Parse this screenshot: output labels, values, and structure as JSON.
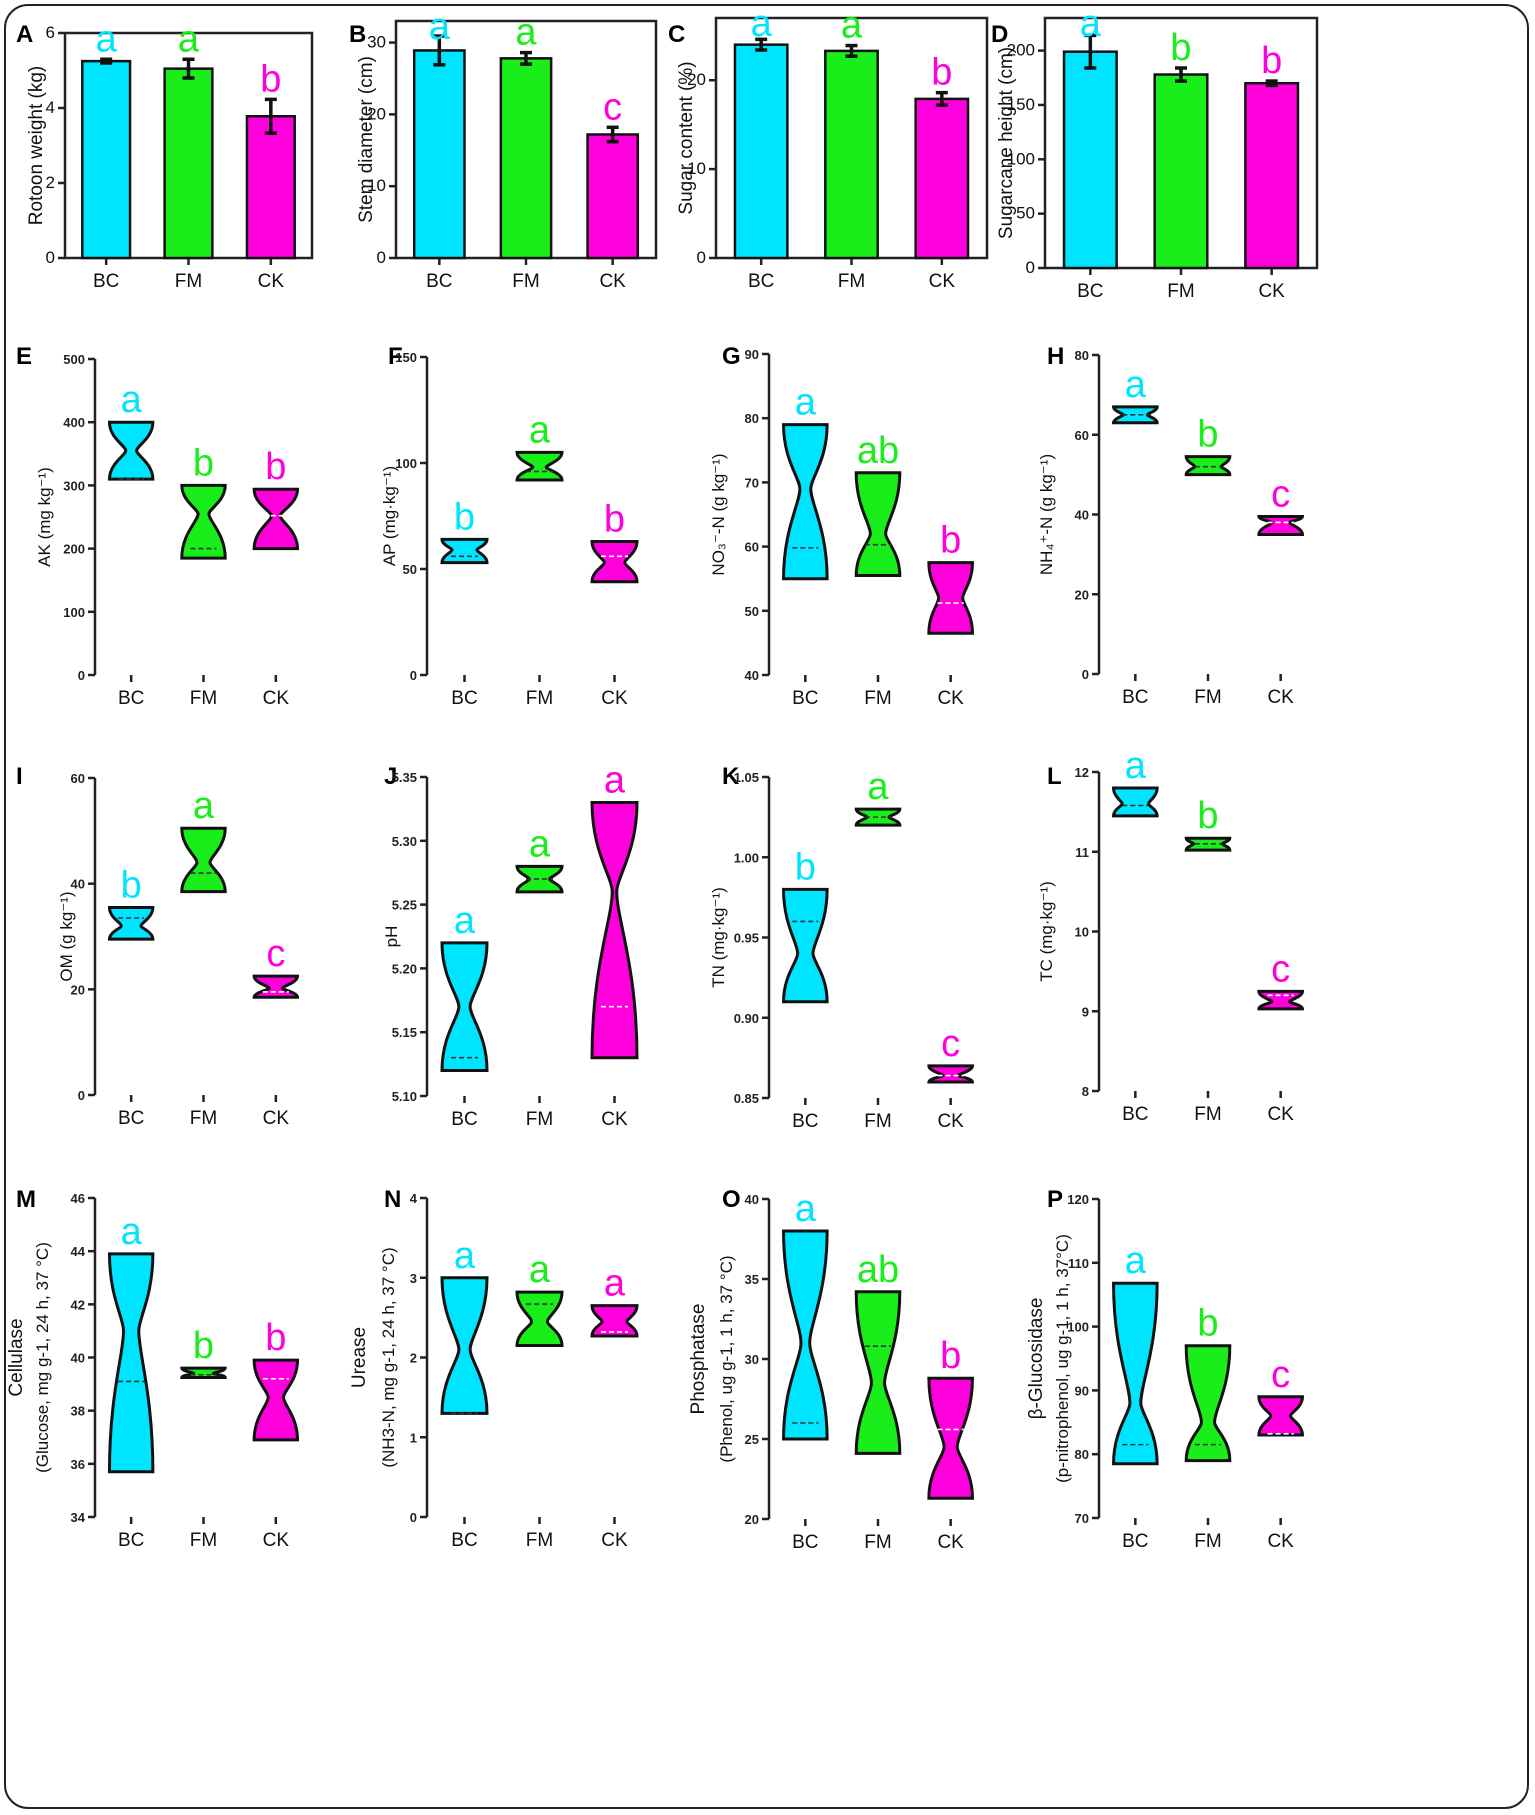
{
  "colors": {
    "BC": "#00e5ff",
    "FM": "#1aee1a",
    "CK": "#ff00dd"
  },
  "categories": [
    "BC",
    "FM",
    "CK"
  ],
  "chart_data": [
    {
      "panel": "A",
      "type": "bar",
      "ylabel": "Rotoon weight (kg)",
      "ylim": [
        0,
        6
      ],
      "ticks": [
        0,
        2,
        4,
        6
      ],
      "categories": [
        "BC",
        "FM",
        "CK"
      ],
      "values": [
        5.25,
        5.05,
        3.78
      ],
      "errors": [
        0.05,
        0.25,
        0.45
      ],
      "letters": [
        "a",
        "a",
        "b"
      ]
    },
    {
      "panel": "B",
      "type": "bar",
      "ylabel": "Stem diameter (cm)",
      "ylim": [
        0,
        33
      ],
      "ticks": [
        0,
        10,
        20,
        30
      ],
      "categories": [
        "BC",
        "FM",
        "CK"
      ],
      "values": [
        28.9,
        27.8,
        17.2
      ],
      "errors": [
        2.0,
        0.8,
        1.0
      ],
      "letters": [
        "a",
        "a",
        "c"
      ]
    },
    {
      "panel": "C",
      "type": "bar",
      "ylabel": "Sugar content (%)",
      "ylim": [
        0,
        27
      ],
      "ticks": [
        0,
        10,
        20
      ],
      "categories": [
        "BC",
        "FM",
        "CK"
      ],
      "values": [
        24.0,
        23.3,
        17.9
      ],
      "errors": [
        0.6,
        0.6,
        0.7
      ],
      "letters": [
        "a",
        "a",
        "b"
      ]
    },
    {
      "panel": "D",
      "type": "bar",
      "ylabel": "Sugarcane height (cm)",
      "ylim": [
        0,
        230
      ],
      "ticks": [
        0,
        50,
        100,
        150,
        200
      ],
      "categories": [
        "BC",
        "FM",
        "CK"
      ],
      "values": [
        199,
        178,
        170
      ],
      "errors": [
        15,
        6,
        2
      ],
      "letters": [
        "a",
        "b",
        "b"
      ]
    },
    {
      "panel": "E",
      "type": "violin",
      "ylabel": "AK    (mg kg⁻¹)",
      "ylim": [
        0,
        500
      ],
      "ticks": [
        0,
        100,
        200,
        300,
        400,
        500
      ],
      "categories": [
        "BC",
        "FM",
        "CK"
      ],
      "letters": [
        "a",
        "b",
        "b"
      ],
      "violins": [
        {
          "min": 310,
          "max": 400,
          "median": 310,
          "neck": 355,
          "neck_width": 0.25
        },
        {
          "min": 185,
          "max": 300,
          "median": 200,
          "neck": 255,
          "neck_width": 0.25
        },
        {
          "min": 200,
          "max": 294,
          "median": 252,
          "neck": 252,
          "neck_width": 0.2
        }
      ]
    },
    {
      "panel": "F",
      "type": "violin",
      "ylabel": "AP  (mg·kg⁻¹)",
      "ylim": [
        0,
        150
      ],
      "ticks": [
        0,
        50,
        100,
        150
      ],
      "categories": [
        "BC",
        "FM",
        "CK"
      ],
      "letters": [
        "b",
        "a",
        "b"
      ],
      "violins": [
        {
          "min": 53,
          "max": 64,
          "median": 56,
          "neck": 59,
          "neck_width": 0.55
        },
        {
          "min": 92,
          "max": 105,
          "median": 96,
          "neck": 98,
          "neck_width": 0.3
        },
        {
          "min": 44,
          "max": 63,
          "median": 56,
          "neck": 53,
          "neck_width": 0.45
        }
      ]
    },
    {
      "panel": "G",
      "type": "violin",
      "ylabel": "NO₃⁻-N (g kg⁻¹)",
      "ylim": [
        40,
        90
      ],
      "ticks": [
        40,
        50,
        60,
        70,
        80,
        90
      ],
      "categories": [
        "BC",
        "FM",
        "CK"
      ],
      "letters": [
        "a",
        "ab",
        "b"
      ],
      "violins": [
        {
          "min": 55,
          "max": 79,
          "median": 59.8,
          "neck": 69,
          "neck_width": 0.25
        },
        {
          "min": 55.5,
          "max": 71.5,
          "median": 60.3,
          "neck": 62,
          "neck_width": 0.35
        },
        {
          "min": 46.5,
          "max": 57.5,
          "median": 51.2,
          "neck": 52,
          "neck_width": 0.55
        }
      ]
    },
    {
      "panel": "H",
      "type": "violin",
      "ylabel": "NH₄⁺-N (g kg⁻¹)",
      "ylim": [
        0,
        80
      ],
      "ticks": [
        0,
        20,
        40,
        60,
        80
      ],
      "categories": [
        "BC",
        "FM",
        "CK"
      ],
      "letters": [
        "a",
        "b",
        "c"
      ],
      "violins": [
        {
          "min": 63,
          "max": 67,
          "median": 65,
          "neck": 65,
          "neck_width": 0.55
        },
        {
          "min": 50,
          "max": 54.5,
          "median": 52,
          "neck": 52,
          "neck_width": 0.6
        },
        {
          "min": 35,
          "max": 39.5,
          "median": 38,
          "neck": 38,
          "neck_width": 0.4
        }
      ]
    },
    {
      "panel": "I",
      "type": "violin",
      "ylabel": "OM (g kg⁻¹)",
      "ylim": [
        0,
        60
      ],
      "ticks": [
        0,
        20,
        40,
        60
      ],
      "categories": [
        "BC",
        "FM",
        "CK"
      ],
      "letters": [
        "b",
        "a",
        "c"
      ],
      "violins": [
        {
          "min": 29.5,
          "max": 35.5,
          "median": 33.5,
          "neck": 32,
          "neck_width": 0.45
        },
        {
          "min": 38.5,
          "max": 50.5,
          "median": 42,
          "neck": 44,
          "neck_width": 0.3
        },
        {
          "min": 18.5,
          "max": 22.5,
          "median": 19.5,
          "neck": 20.2,
          "neck_width": 0.3
        }
      ]
    },
    {
      "panel": "J",
      "type": "violin",
      "ylabel": "pH",
      "ylim": [
        5.1,
        5.35
      ],
      "ticks": [
        5.1,
        5.15,
        5.2,
        5.25,
        5.3,
        5.35
      ],
      "categories": [
        "BC",
        "FM",
        "CK"
      ],
      "letters": [
        "a",
        "a",
        "a"
      ],
      "violins": [
        {
          "min": 5.12,
          "max": 5.22,
          "median": 5.13,
          "neck": 5.17,
          "neck_width": 0.25
        },
        {
          "min": 5.26,
          "max": 5.28,
          "median": 5.27,
          "neck": 5.27,
          "neck_width": 0.45
        },
        {
          "min": 5.13,
          "max": 5.33,
          "median": 5.17,
          "neck": 5.26,
          "neck_width": 0.1
        }
      ]
    },
    {
      "panel": "K",
      "type": "violin",
      "ylabel": "TN (mg·kg⁻¹)",
      "ylim": [
        0.85,
        1.05
      ],
      "ticks": [
        0.85,
        0.9,
        0.95,
        1.0,
        1.05
      ],
      "categories": [
        "BC",
        "FM",
        "CK"
      ],
      "letters": [
        "b",
        "a",
        "c"
      ],
      "violins": [
        {
          "min": 0.91,
          "max": 0.98,
          "median": 0.96,
          "neck": 0.94,
          "neck_width": 0.35
        },
        {
          "min": 1.02,
          "max": 1.03,
          "median": 1.025,
          "neck": 1.025,
          "neck_width": 0.5
        },
        {
          "min": 0.86,
          "max": 0.87,
          "median": 0.864,
          "neck": 0.864,
          "neck_width": 0.35
        }
      ]
    },
    {
      "panel": "L",
      "type": "violin",
      "ylabel": "TC  (mg·kg⁻¹)",
      "ylim": [
        8,
        12
      ],
      "ticks": [
        8,
        9,
        10,
        11,
        12
      ],
      "categories": [
        "BC",
        "FM",
        "CK"
      ],
      "letters": [
        "a",
        "b",
        "c"
      ],
      "violins": [
        {
          "min": 11.45,
          "max": 11.8,
          "median": 11.58,
          "neck": 11.6,
          "neck_width": 0.6
        },
        {
          "min": 11.02,
          "max": 11.17,
          "median": 11.1,
          "neck": 11.1,
          "neck_width": 0.65
        },
        {
          "min": 9.03,
          "max": 9.25,
          "median": 9.2,
          "neck": 9.12,
          "neck_width": 0.4
        }
      ]
    },
    {
      "panel": "M",
      "type": "violin",
      "ylabel": "Cellulase",
      "ylabel2": "(Glucose, mg g-1, 24 h, 37 °C)",
      "ylim": [
        34,
        46
      ],
      "ticks": [
        34,
        36,
        38,
        40,
        42,
        44,
        46
      ],
      "categories": [
        "BC",
        "FM",
        "CK"
      ],
      "letters": [
        "a",
        "b",
        "b"
      ],
      "violins": [
        {
          "min": 35.7,
          "max": 43.9,
          "median": 39.1,
          "neck": 41,
          "neck_width": 0.35
        },
        {
          "min": 39.25,
          "max": 39.6,
          "median": 39.35,
          "neck": 39.4,
          "neck_width": 0.45
        },
        {
          "min": 36.9,
          "max": 39.9,
          "median": 39.2,
          "neck": 38.5,
          "neck_width": 0.35
        }
      ]
    },
    {
      "panel": "N",
      "type": "violin",
      "ylabel": "Urease",
      "ylabel2": "(NH3-N, mg g-1, 24 h, 37 °C)",
      "ylim": [
        0,
        4
      ],
      "ticks": [
        0,
        1,
        2,
        3,
        4
      ],
      "categories": [
        "BC",
        "FM",
        "CK"
      ],
      "letters": [
        "a",
        "a",
        "a"
      ],
      "violins": [
        {
          "min": 1.3,
          "max": 3.0,
          "median": 1.3,
          "neck": 2.1,
          "neck_width": 0.25
        },
        {
          "min": 2.15,
          "max": 2.82,
          "median": 2.67,
          "neck": 2.45,
          "neck_width": 0.35
        },
        {
          "min": 2.27,
          "max": 2.65,
          "median": 2.32,
          "neck": 2.45,
          "neck_width": 0.55
        }
      ]
    },
    {
      "panel": "O",
      "type": "violin",
      "ylabel": "Phosphatase",
      "ylabel2": "(Phenol, ug g-1, 1 h, 37 °C)",
      "ylim": [
        20,
        40
      ],
      "ticks": [
        20,
        25,
        30,
        35,
        40
      ],
      "categories": [
        "BC",
        "FM",
        "CK"
      ],
      "letters": [
        "a",
        "ab",
        "b"
      ],
      "violins": [
        {
          "min": 25,
          "max": 38,
          "median": 26,
          "neck": 31,
          "neck_width": 0.2
        },
        {
          "min": 24.1,
          "max": 34.2,
          "median": 30.8,
          "neck": 28.5,
          "neck_width": 0.3
        },
        {
          "min": 21.3,
          "max": 28.8,
          "median": 25.6,
          "neck": 24.5,
          "neck_width": 0.3
        }
      ]
    },
    {
      "panel": "P",
      "type": "violin",
      "ylabel": "β-Glucosidase",
      "ylabel2": "(p-nitrophenol, ug g-1, 1 h, 37°C)",
      "ylim": [
        70,
        120
      ],
      "ticks": [
        70,
        80,
        90,
        100,
        110,
        120
      ],
      "categories": [
        "BC",
        "FM",
        "CK"
      ],
      "letters": [
        "a",
        "b",
        "c"
      ],
      "violins": [
        {
          "min": 78.5,
          "max": 106.8,
          "median": 81.5,
          "neck": 88,
          "neck_width": 0.25
        },
        {
          "min": 79,
          "max": 97,
          "median": 81.5,
          "neck": 85,
          "neck_width": 0.3
        },
        {
          "min": 83,
          "max": 89,
          "median": 83.2,
          "neck": 86,
          "neck_width": 0.45
        }
      ]
    }
  ]
}
